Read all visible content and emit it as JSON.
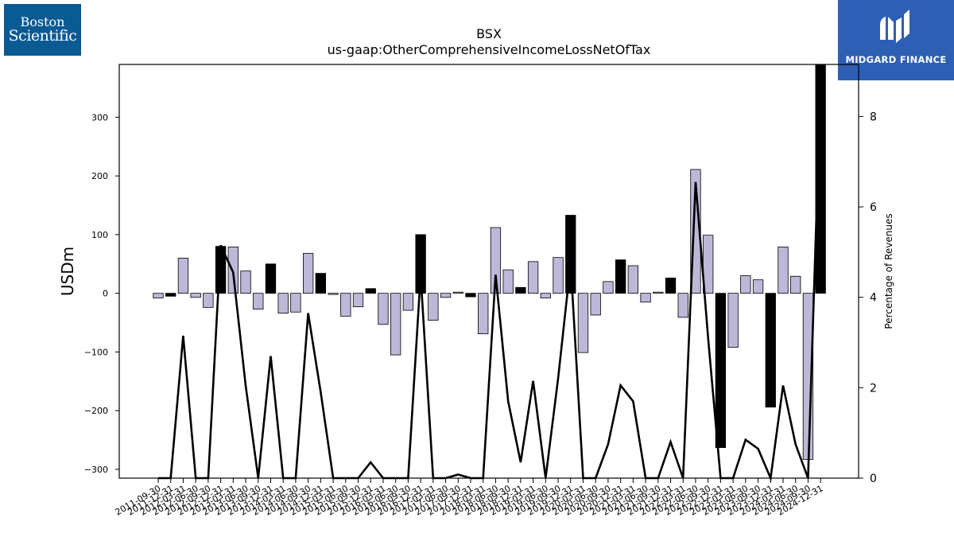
{
  "logos": {
    "company": {
      "line1": "Boston",
      "line2": "Scientific"
    },
    "publisher": {
      "name": "MIDGARD FINANCE"
    }
  },
  "chart_data": {
    "type": "bar",
    "title": "BSX",
    "subtitle": "us-gaap:OtherComprehensiveIncomeLossNetOfTax",
    "ylabel": "USDm",
    "y2label": "Percentage of Revenues",
    "ylim": [
      -315,
      390
    ],
    "y2lim": [
      0,
      9.15
    ],
    "yticks": [
      -300,
      -200,
      -100,
      0,
      100,
      200,
      300
    ],
    "y2ticks": [
      0,
      2,
      4,
      6,
      8
    ],
    "categories": [
      "2011-09-30",
      "2011-12-31",
      "2012-03-31",
      "2012-06-30",
      "2012-09-30",
      "2012-12-31",
      "2013-03-31",
      "2013-06-30",
      "2013-09-30",
      "2013-12-31",
      "2014-03-31",
      "2014-06-30",
      "2014-09-30",
      "2014-12-31",
      "2015-03-31",
      "2015-06-30",
      "2015-09-30",
      "2015-12-31",
      "2016-03-31",
      "2016-06-30",
      "2016-09-30",
      "2016-12-31",
      "2017-03-31",
      "2017-06-30",
      "2017-09-30",
      "2017-12-31",
      "2018-03-31",
      "2018-06-30",
      "2018-09-30",
      "2018-12-31",
      "2019-03-31",
      "2019-06-30",
      "2019-09-30",
      "2019-12-31",
      "2020-03-31",
      "2020-06-30",
      "2020-09-30",
      "2020-12-31",
      "2021-03-31",
      "2021-06-30",
      "2021-09-30",
      "2021-12-31",
      "2022-03-31",
      "2022-06-30",
      "2022-09-30",
      "2022-12-31",
      "2023-03-31",
      "2023-06-30",
      "2023-09-30",
      "2023-12-31",
      "2024-03-31",
      "2024-06-30",
      "2024-09-30",
      "2024-12-31"
    ],
    "series": [
      {
        "type": "bar",
        "values": [
          -8,
          -5,
          60,
          -7,
          -24,
          80,
          79,
          38,
          -27,
          50,
          -34,
          -32,
          68,
          34,
          -2,
          -39,
          -23,
          8,
          -53,
          -105,
          -29,
          100,
          -46,
          -7,
          2,
          -6,
          -69,
          112,
          40,
          10,
          54,
          -8,
          61,
          133,
          -101,
          -37,
          20,
          57,
          47,
          -15,
          2,
          26,
          -41,
          211,
          99,
          -263,
          -92,
          30,
          23,
          -194,
          79,
          29,
          -283,
          390
        ]
      },
      {
        "type": "line",
        "axis": "right",
        "values": [
          0,
          0,
          3.15,
          0,
          0,
          5.15,
          4.55,
          2.05,
          0,
          2.7,
          0,
          0,
          3.65,
          1.9,
          0,
          0,
          0,
          0.35,
          0,
          0,
          0,
          4.5,
          0,
          0,
          0.08,
          0,
          0,
          4.5,
          1.7,
          0.35,
          2.15,
          0,
          2.2,
          4.75,
          0,
          0,
          0.75,
          2.05,
          1.7,
          0,
          0,
          0.8,
          0,
          6.55,
          3.1,
          0,
          0,
          0.85,
          0.65,
          0,
          2.05,
          0.75,
          0,
          8.7
        ]
      }
    ]
  }
}
